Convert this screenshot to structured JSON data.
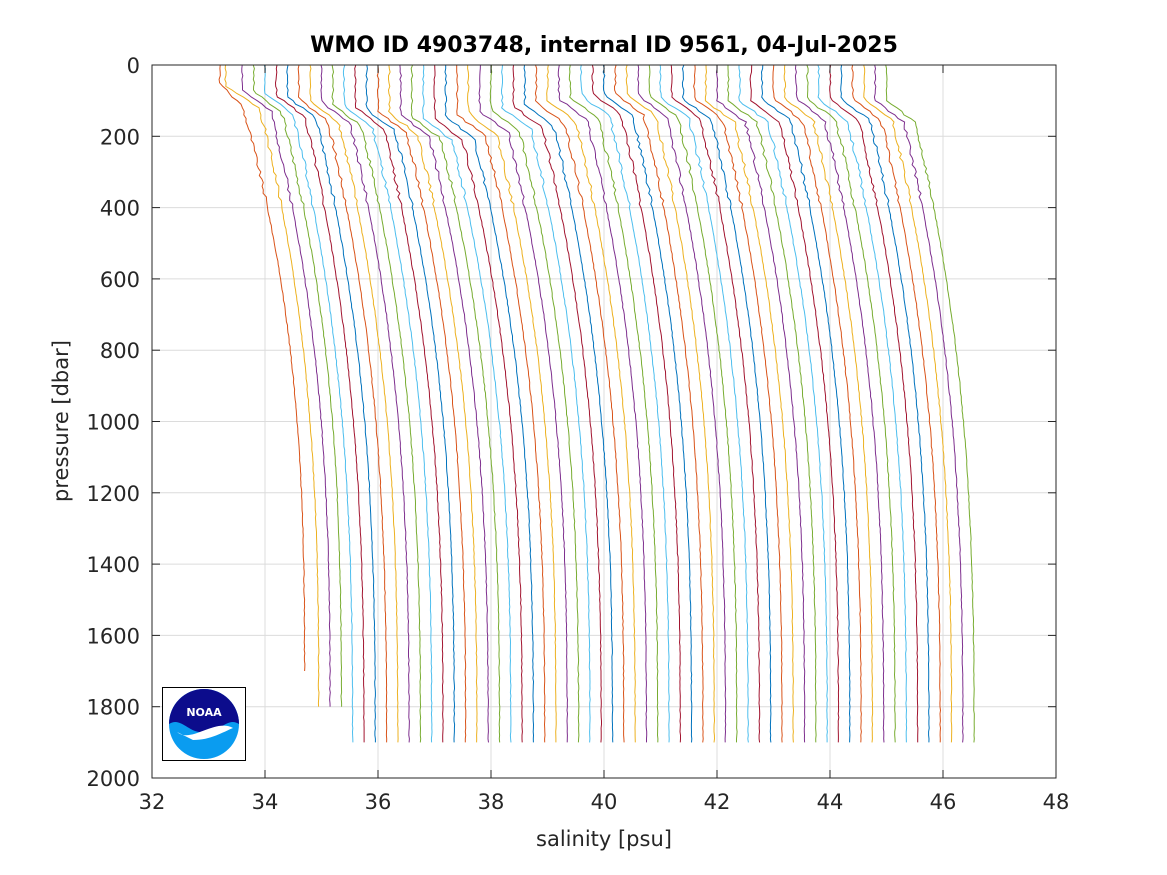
{
  "chart_data": {
    "type": "line",
    "title": "WMO ID 4903748, internal ID 9561, 04-Jul-2025",
    "xlabel": "salinity [psu]",
    "ylabel": "pressure [dbar]",
    "xlim": [
      32,
      48
    ],
    "ylim": [
      0,
      2000
    ],
    "y_reversed": true,
    "grid": true,
    "legend": "none",
    "x_ticks": [
      32,
      34,
      36,
      38,
      40,
      42,
      44,
      46,
      48
    ],
    "y_ticks": [
      0,
      200,
      400,
      600,
      800,
      1000,
      1200,
      1400,
      1600,
      1800,
      2000
    ],
    "profile_offset_note": "",
    "color_cycle": [
      "#0072BD",
      "#D95319",
      "#EDB120",
      "#7E2F8E",
      "#77AC30",
      "#4DBEEE",
      "#A2142F"
    ],
    "series": [
      {
        "profile": 1,
        "surface_salinity": 33.2,
        "mixed_layer_depth": 55,
        "thermocline_salinity": 33.6,
        "deep_salinity": 34.7,
        "max_pressure": 1700,
        "color": "#D95319"
      },
      {
        "profile": 2,
        "surface_salinity": 33.3,
        "mixed_layer_depth": 60,
        "thermocline_salinity": 33.9,
        "deep_salinity": 34.95,
        "max_pressure": 1800,
        "color": "#EDB120"
      },
      {
        "profile": 3,
        "surface_salinity": 33.6,
        "mixed_layer_depth": 70,
        "thermocline_salinity": 34.1,
        "deep_salinity": 35.15,
        "max_pressure": 1800,
        "color": "#7E2F8E"
      },
      {
        "profile": 4,
        "surface_salinity": 33.8,
        "mixed_layer_depth": 75,
        "thermocline_salinity": 34.3,
        "deep_salinity": 35.35,
        "max_pressure": 1800,
        "color": "#77AC30"
      },
      {
        "profile": 5,
        "surface_salinity": 34.0,
        "mixed_layer_depth": 80,
        "thermocline_salinity": 34.5,
        "deep_salinity": 35.55,
        "max_pressure": 1900,
        "color": "#4DBEEE"
      },
      {
        "profile": 6,
        "surface_salinity": 34.2,
        "mixed_layer_depth": 85,
        "thermocline_salinity": 34.7,
        "deep_salinity": 35.75,
        "max_pressure": 1900,
        "color": "#A2142F"
      },
      {
        "profile": 7,
        "surface_salinity": 34.4,
        "mixed_layer_depth": 90,
        "thermocline_salinity": 34.9,
        "deep_salinity": 35.95,
        "max_pressure": 1900,
        "color": "#0072BD"
      },
      {
        "profile": 8,
        "surface_salinity": 34.6,
        "mixed_layer_depth": 95,
        "thermocline_salinity": 35.1,
        "deep_salinity": 36.15,
        "max_pressure": 1900,
        "color": "#D95319"
      },
      {
        "profile": 9,
        "surface_salinity": 34.8,
        "mixed_layer_depth": 100,
        "thermocline_salinity": 35.3,
        "deep_salinity": 36.35,
        "max_pressure": 1900,
        "color": "#EDB120"
      },
      {
        "profile": 10,
        "surface_salinity": 35.0,
        "mixed_layer_depth": 105,
        "thermocline_salinity": 35.5,
        "deep_salinity": 36.55,
        "max_pressure": 1900,
        "color": "#7E2F8E"
      },
      {
        "profile": 11,
        "surface_salinity": 35.2,
        "mixed_layer_depth": 110,
        "thermocline_salinity": 35.7,
        "deep_salinity": 36.75,
        "max_pressure": 1900,
        "color": "#77AC30"
      },
      {
        "profile": 12,
        "surface_salinity": 35.4,
        "mixed_layer_depth": 115,
        "thermocline_salinity": 35.9,
        "deep_salinity": 36.95,
        "max_pressure": 1900,
        "color": "#4DBEEE"
      },
      {
        "profile": 13,
        "surface_salinity": 35.6,
        "mixed_layer_depth": 120,
        "thermocline_salinity": 36.1,
        "deep_salinity": 37.15,
        "max_pressure": 1900,
        "color": "#A2142F"
      },
      {
        "profile": 14,
        "surface_salinity": 35.8,
        "mixed_layer_depth": 125,
        "thermocline_salinity": 36.3,
        "deep_salinity": 37.35,
        "max_pressure": 1900,
        "color": "#0072BD"
      },
      {
        "profile": 15,
        "surface_salinity": 36.0,
        "mixed_layer_depth": 130,
        "thermocline_salinity": 36.5,
        "deep_salinity": 37.55,
        "max_pressure": 1900,
        "color": "#D95319"
      },
      {
        "profile": 16,
        "surface_salinity": 36.2,
        "mixed_layer_depth": 135,
        "thermocline_salinity": 36.7,
        "deep_salinity": 37.75,
        "max_pressure": 1900,
        "color": "#EDB120"
      },
      {
        "profile": 17,
        "surface_salinity": 36.4,
        "mixed_layer_depth": 140,
        "thermocline_salinity": 36.9,
        "deep_salinity": 37.95,
        "max_pressure": 1900,
        "color": "#7E2F8E"
      },
      {
        "profile": 18,
        "surface_salinity": 36.6,
        "mixed_layer_depth": 145,
        "thermocline_salinity": 37.1,
        "deep_salinity": 38.15,
        "max_pressure": 1900,
        "color": "#77AC30"
      },
      {
        "profile": 19,
        "surface_salinity": 36.8,
        "mixed_layer_depth": 150,
        "thermocline_salinity": 37.3,
        "deep_salinity": 38.35,
        "max_pressure": 1900,
        "color": "#4DBEEE"
      },
      {
        "profile": 20,
        "surface_salinity": 37.0,
        "mixed_layer_depth": 150,
        "thermocline_salinity": 37.5,
        "deep_salinity": 38.55,
        "max_pressure": 1900,
        "color": "#A2142F"
      },
      {
        "profile": 21,
        "surface_salinity": 37.2,
        "mixed_layer_depth": 145,
        "thermocline_salinity": 37.7,
        "deep_salinity": 38.75,
        "max_pressure": 1900,
        "color": "#0072BD"
      },
      {
        "profile": 22,
        "surface_salinity": 37.4,
        "mixed_layer_depth": 140,
        "thermocline_salinity": 37.9,
        "deep_salinity": 38.95,
        "max_pressure": 1900,
        "color": "#D95319"
      },
      {
        "profile": 23,
        "surface_salinity": 37.6,
        "mixed_layer_depth": 135,
        "thermocline_salinity": 38.1,
        "deep_salinity": 39.15,
        "max_pressure": 1900,
        "color": "#EDB120"
      },
      {
        "profile": 24,
        "surface_salinity": 37.8,
        "mixed_layer_depth": 130,
        "thermocline_salinity": 38.3,
        "deep_salinity": 39.35,
        "max_pressure": 1900,
        "color": "#7E2F8E"
      },
      {
        "profile": 25,
        "surface_salinity": 38.0,
        "mixed_layer_depth": 125,
        "thermocline_salinity": 38.5,
        "deep_salinity": 39.55,
        "max_pressure": 1900,
        "color": "#77AC30"
      },
      {
        "profile": 26,
        "surface_salinity": 38.2,
        "mixed_layer_depth": 120,
        "thermocline_salinity": 38.7,
        "deep_salinity": 39.75,
        "max_pressure": 1900,
        "color": "#4DBEEE"
      },
      {
        "profile": 27,
        "surface_salinity": 38.4,
        "mixed_layer_depth": 115,
        "thermocline_salinity": 38.9,
        "deep_salinity": 39.95,
        "max_pressure": 1900,
        "color": "#A2142F"
      },
      {
        "profile": 28,
        "surface_salinity": 38.6,
        "mixed_layer_depth": 110,
        "thermocline_salinity": 39.1,
        "deep_salinity": 40.15,
        "max_pressure": 1900,
        "color": "#0072BD"
      },
      {
        "profile": 29,
        "surface_salinity": 38.8,
        "mixed_layer_depth": 105,
        "thermocline_salinity": 39.3,
        "deep_salinity": 40.35,
        "max_pressure": 1900,
        "color": "#D95319"
      },
      {
        "profile": 30,
        "surface_salinity": 39.0,
        "mixed_layer_depth": 100,
        "thermocline_salinity": 39.5,
        "deep_salinity": 40.55,
        "max_pressure": 1900,
        "color": "#EDB120"
      },
      {
        "profile": 31,
        "surface_salinity": 39.2,
        "mixed_layer_depth": 95,
        "thermocline_salinity": 39.7,
        "deep_salinity": 40.75,
        "max_pressure": 1900,
        "color": "#7E2F8E"
      },
      {
        "profile": 32,
        "surface_salinity": 39.4,
        "mixed_layer_depth": 90,
        "thermocline_salinity": 39.9,
        "deep_salinity": 40.95,
        "max_pressure": 1900,
        "color": "#77AC30"
      },
      {
        "profile": 33,
        "surface_salinity": 39.6,
        "mixed_layer_depth": 85,
        "thermocline_salinity": 40.1,
        "deep_salinity": 41.15,
        "max_pressure": 1900,
        "color": "#4DBEEE"
      },
      {
        "profile": 34,
        "surface_salinity": 39.8,
        "mixed_layer_depth": 80,
        "thermocline_salinity": 40.3,
        "deep_salinity": 41.35,
        "max_pressure": 1900,
        "color": "#A2142F"
      },
      {
        "profile": 35,
        "surface_salinity": 40.0,
        "mixed_layer_depth": 80,
        "thermocline_salinity": 40.5,
        "deep_salinity": 41.55,
        "max_pressure": 1900,
        "color": "#0072BD"
      },
      {
        "profile": 36,
        "surface_salinity": 40.2,
        "mixed_layer_depth": 80,
        "thermocline_salinity": 40.7,
        "deep_salinity": 41.75,
        "max_pressure": 1900,
        "color": "#D95319"
      },
      {
        "profile": 37,
        "surface_salinity": 40.4,
        "mixed_layer_depth": 80,
        "thermocline_salinity": 40.9,
        "deep_salinity": 41.95,
        "max_pressure": 1900,
        "color": "#EDB120"
      },
      {
        "profile": 38,
        "surface_salinity": 40.6,
        "mixed_layer_depth": 85,
        "thermocline_salinity": 41.1,
        "deep_salinity": 42.15,
        "max_pressure": 1900,
        "color": "#7E2F8E"
      },
      {
        "profile": 39,
        "surface_salinity": 40.8,
        "mixed_layer_depth": 85,
        "thermocline_salinity": 41.3,
        "deep_salinity": 42.35,
        "max_pressure": 1900,
        "color": "#77AC30"
      },
      {
        "profile": 40,
        "surface_salinity": 41.0,
        "mixed_layer_depth": 90,
        "thermocline_salinity": 41.5,
        "deep_salinity": 42.55,
        "max_pressure": 1900,
        "color": "#4DBEEE"
      },
      {
        "profile": 41,
        "surface_salinity": 41.2,
        "mixed_layer_depth": 90,
        "thermocline_salinity": 41.7,
        "deep_salinity": 42.75,
        "max_pressure": 1900,
        "color": "#A2142F"
      },
      {
        "profile": 42,
        "surface_salinity": 41.4,
        "mixed_layer_depth": 95,
        "thermocline_salinity": 41.9,
        "deep_salinity": 42.95,
        "max_pressure": 1900,
        "color": "#0072BD"
      },
      {
        "profile": 43,
        "surface_salinity": 41.6,
        "mixed_layer_depth": 95,
        "thermocline_salinity": 42.1,
        "deep_salinity": 43.15,
        "max_pressure": 1900,
        "color": "#D95319"
      },
      {
        "profile": 44,
        "surface_salinity": 41.8,
        "mixed_layer_depth": 100,
        "thermocline_salinity": 42.3,
        "deep_salinity": 43.35,
        "max_pressure": 1900,
        "color": "#EDB120"
      },
      {
        "profile": 45,
        "surface_salinity": 42.0,
        "mixed_layer_depth": 100,
        "thermocline_salinity": 42.5,
        "deep_salinity": 43.55,
        "max_pressure": 1900,
        "color": "#7E2F8E"
      },
      {
        "profile": 46,
        "surface_salinity": 42.2,
        "mixed_layer_depth": 100,
        "thermocline_salinity": 42.7,
        "deep_salinity": 43.75,
        "max_pressure": 1900,
        "color": "#77AC30"
      },
      {
        "profile": 47,
        "surface_salinity": 42.4,
        "mixed_layer_depth": 100,
        "thermocline_salinity": 42.9,
        "deep_salinity": 43.95,
        "max_pressure": 1900,
        "color": "#4DBEEE"
      },
      {
        "profile": 48,
        "surface_salinity": 42.6,
        "mixed_layer_depth": 100,
        "thermocline_salinity": 43.1,
        "deep_salinity": 44.15,
        "max_pressure": 1900,
        "color": "#A2142F"
      },
      {
        "profile": 49,
        "surface_salinity": 42.8,
        "mixed_layer_depth": 95,
        "thermocline_salinity": 43.3,
        "deep_salinity": 44.35,
        "max_pressure": 1900,
        "color": "#0072BD"
      },
      {
        "profile": 50,
        "surface_salinity": 43.0,
        "mixed_layer_depth": 95,
        "thermocline_salinity": 43.5,
        "deep_salinity": 44.55,
        "max_pressure": 1900,
        "color": "#D95319"
      },
      {
        "profile": 51,
        "surface_salinity": 43.2,
        "mixed_layer_depth": 95,
        "thermocline_salinity": 43.7,
        "deep_salinity": 44.75,
        "max_pressure": 1900,
        "color": "#EDB120"
      },
      {
        "profile": 52,
        "surface_salinity": 43.4,
        "mixed_layer_depth": 95,
        "thermocline_salinity": 43.9,
        "deep_salinity": 44.95,
        "max_pressure": 1900,
        "color": "#7E2F8E"
      },
      {
        "profile": 53,
        "surface_salinity": 43.6,
        "mixed_layer_depth": 95,
        "thermocline_salinity": 44.1,
        "deep_salinity": 45.15,
        "max_pressure": 1900,
        "color": "#77AC30"
      },
      {
        "profile": 54,
        "surface_salinity": 43.8,
        "mixed_layer_depth": 95,
        "thermocline_salinity": 44.3,
        "deep_salinity": 45.35,
        "max_pressure": 1900,
        "color": "#4DBEEE"
      },
      {
        "profile": 55,
        "surface_salinity": 44.0,
        "mixed_layer_depth": 95,
        "thermocline_salinity": 44.5,
        "deep_salinity": 45.55,
        "max_pressure": 1900,
        "color": "#A2142F"
      },
      {
        "profile": 56,
        "surface_salinity": 44.2,
        "mixed_layer_depth": 95,
        "thermocline_salinity": 44.7,
        "deep_salinity": 45.75,
        "max_pressure": 1900,
        "color": "#0072BD"
      },
      {
        "profile": 57,
        "surface_salinity": 44.4,
        "mixed_layer_depth": 95,
        "thermocline_salinity": 44.9,
        "deep_salinity": 45.95,
        "max_pressure": 1900,
        "color": "#D95319"
      },
      {
        "profile": 58,
        "surface_salinity": 44.6,
        "mixed_layer_depth": 95,
        "thermocline_salinity": 45.1,
        "deep_salinity": 46.15,
        "max_pressure": 1900,
        "color": "#EDB120"
      },
      {
        "profile": 59,
        "surface_salinity": 44.8,
        "mixed_layer_depth": 100,
        "thermocline_salinity": 45.3,
        "deep_salinity": 46.35,
        "max_pressure": 1900,
        "color": "#7E2F8E"
      },
      {
        "profile": 60,
        "surface_salinity": 45.0,
        "mixed_layer_depth": 100,
        "thermocline_salinity": 45.5,
        "deep_salinity": 46.55,
        "max_pressure": 1900,
        "color": "#77AC30"
      }
    ]
  },
  "logo": {
    "text": "NOAA",
    "colors": {
      "top": "#0c0c8c",
      "bottom": "#0a9cf0",
      "wave": "#ffffff"
    }
  }
}
